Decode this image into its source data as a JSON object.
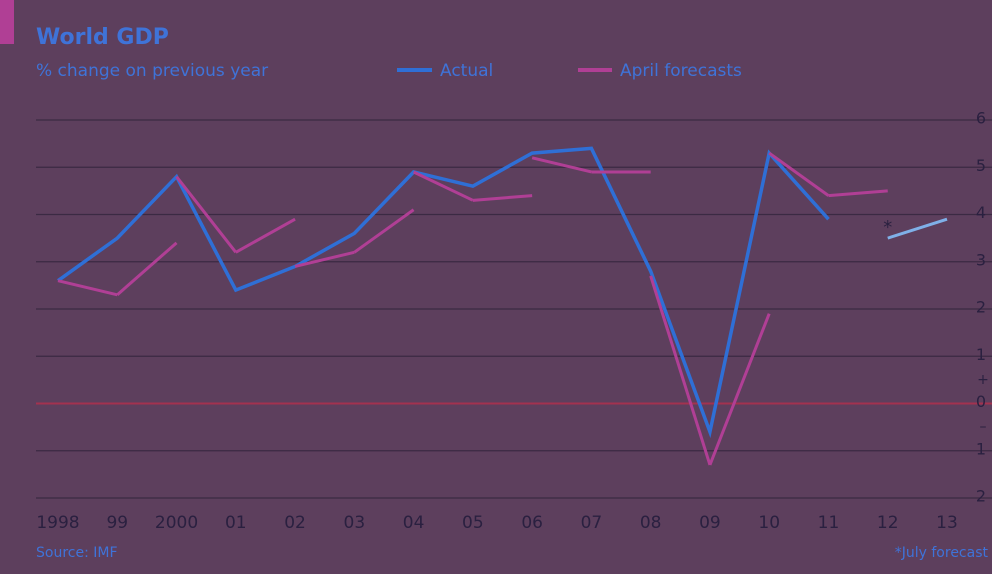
{
  "chart_data": {
    "type": "line",
    "title": "World GDP",
    "subtitle": "% change on previous year",
    "source": "Source: IMF",
    "footnote": "*July forecast",
    "categories": [
      "1998",
      "99",
      "2000",
      "01",
      "02",
      "03",
      "04",
      "05",
      "06",
      "07",
      "08",
      "09",
      "10",
      "11",
      "12",
      "13"
    ],
    "series": [
      {
        "name": "Actual",
        "color": "#2f6fd6",
        "values": [
          2.6,
          3.5,
          4.8,
          2.4,
          2.9,
          3.6,
          4.9,
          4.6,
          5.3,
          5.4,
          2.8,
          -0.6,
          5.3,
          3.9,
          null,
          null
        ]
      },
      {
        "name": "April forecasts",
        "color": "#b03f95",
        "segments": [
          {
            "x": [
              "1998",
              "99"
            ],
            "values": [
              2.6,
              2.3
            ]
          },
          {
            "x": [
              "99",
              "2000"
            ],
            "values": [
              2.3,
              3.4
            ]
          },
          {
            "x": [
              "2000",
              "01"
            ],
            "values": [
              4.8,
              3.2
            ]
          },
          {
            "x": [
              "01",
              "02"
            ],
            "values": [
              3.2,
              3.9
            ]
          },
          {
            "x": [
              "02",
              "03"
            ],
            "values": [
              2.9,
              3.2
            ]
          },
          {
            "x": [
              "03",
              "04"
            ],
            "values": [
              3.2,
              4.1
            ]
          },
          {
            "x": [
              "04",
              "05"
            ],
            "values": [
              4.9,
              4.3
            ]
          },
          {
            "x": [
              "05",
              "06"
            ],
            "values": [
              4.3,
              4.4
            ]
          },
          {
            "x": [
              "06",
              "07"
            ],
            "values": [
              5.2,
              4.9
            ]
          },
          {
            "x": [
              "07",
              "08"
            ],
            "values": [
              4.9,
              4.9
            ]
          },
          {
            "x": [
              "08",
              "09"
            ],
            "values": [
              2.7,
              -1.3
            ]
          },
          {
            "x": [
              "09",
              "10"
            ],
            "values": [
              -1.3,
              1.9
            ]
          },
          {
            "x": [
              "10",
              "11"
            ],
            "values": [
              5.3,
              4.4
            ]
          },
          {
            "x": [
              "11",
              "12"
            ],
            "values": [
              4.4,
              4.5
            ]
          }
        ]
      }
    ],
    "july_forecast": {
      "color": "#7fb0e8",
      "marker": "*",
      "x": [
        "12",
        "13"
      ],
      "values": [
        3.5,
        3.9
      ]
    },
    "ylim": [
      -2,
      6
    ],
    "yticks": [
      {
        "value": -2,
        "label": "2"
      },
      {
        "value": -1,
        "label": "1"
      },
      0,
      1,
      2,
      3,
      4,
      5,
      6
    ],
    "sign_labels": [
      "+",
      "–"
    ],
    "grid": true
  }
}
